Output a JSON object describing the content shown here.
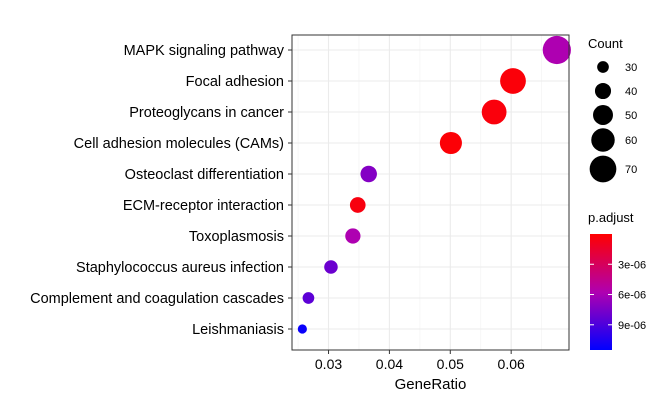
{
  "chart_data": {
    "type": "scatter",
    "title": "",
    "xlabel": "GeneRatio",
    "ylabel": "",
    "xlim": [
      0.024,
      0.0695
    ],
    "xticks": [
      0.03,
      0.04,
      0.05,
      0.06
    ],
    "xtick_labels": [
      "0.03",
      "0.04",
      "0.05",
      "0.06"
    ],
    "grid": true,
    "legend_position": "right",
    "categories": [
      "MAPK signaling pathway",
      "Focal adhesion",
      "Proteoglycans in cancer",
      "Cell adhesion molecules (CAMs)",
      "Osteoclast differentiation",
      "ECM-receptor interaction",
      "Toxoplasmosis",
      "Staphylococcus aureus infection",
      "Complement and coagulation cascades",
      "Leishmaniasis"
    ],
    "points": [
      {
        "category": "MAPK signaling pathway",
        "gene_ratio": 0.0675,
        "count": 75,
        "p_adjust": 5.8e-06
      },
      {
        "category": "Focal adhesion",
        "gene_ratio": 0.0603,
        "count": 67,
        "p_adjust": 3e-07
      },
      {
        "category": "Proteoglycans in cancer",
        "gene_ratio": 0.0572,
        "count": 64,
        "p_adjust": 4e-07
      },
      {
        "category": "Cell adhesion molecules (CAMs)",
        "gene_ratio": 0.0501,
        "count": 56,
        "p_adjust": 2e-07
      },
      {
        "category": "Osteoclast differentiation",
        "gene_ratio": 0.0366,
        "count": 41,
        "p_adjust": 7.2e-06
      },
      {
        "category": "ECM-receptor interaction",
        "gene_ratio": 0.0348,
        "count": 39,
        "p_adjust": 5e-07
      },
      {
        "category": "Toxoplasmosis",
        "gene_ratio": 0.034,
        "count": 38,
        "p_adjust": 5.8e-06
      },
      {
        "category": "Staphylococcus aureus infection",
        "gene_ratio": 0.0304,
        "count": 34,
        "p_adjust": 8e-06
      },
      {
        "category": "Complement and coagulation cascades",
        "gene_ratio": 0.0267,
        "count": 30,
        "p_adjust": 8.5e-06
      },
      {
        "category": "Leishmaniasis",
        "gene_ratio": 0.0257,
        "count": 25,
        "p_adjust": 1.12e-05
      }
    ],
    "size_legend": {
      "title": "Count",
      "values": [
        30,
        40,
        50,
        60,
        70
      ],
      "labels": [
        "30",
        "40",
        "50",
        "60",
        "70"
      ]
    },
    "color_legend": {
      "title": "p.adjust",
      "range": [
        0.0,
        1.15e-05
      ],
      "ticks": [
        3e-06,
        6e-06,
        9e-06
      ],
      "tick_labels": [
        "3e-06",
        "6e-06",
        "9e-06"
      ],
      "low_color": "#ff0000",
      "mid_color": "#b000b0",
      "high_color": "#0000ff"
    },
    "colors": {
      "panel_border": "#333333",
      "grid_major": "#ebebeb",
      "grid_minor": "#f5f5f5"
    }
  }
}
